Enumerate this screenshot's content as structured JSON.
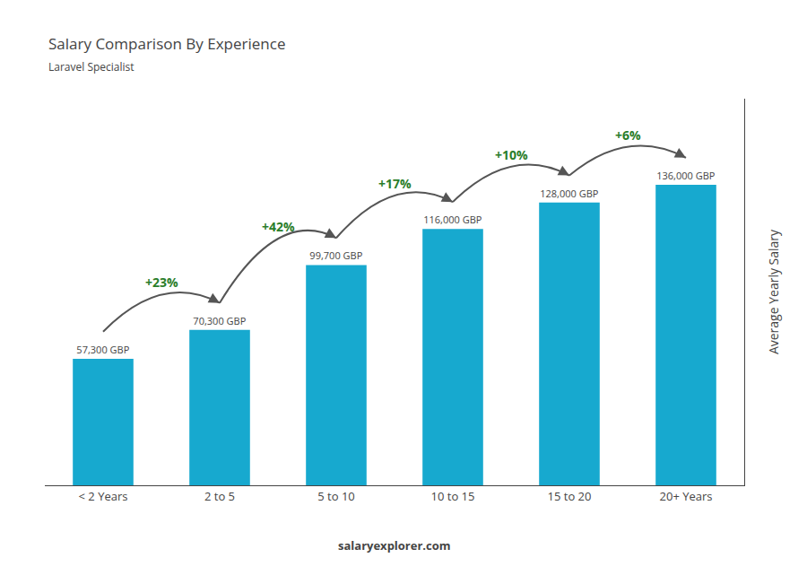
{
  "chart_data": {
    "type": "bar",
    "title": "Salary Comparison By Experience",
    "subtitle": "Laravel Specialist",
    "ylabel": "Average Yearly Salary",
    "categories": [
      "< 2 Years",
      "2 to 5",
      "5 to 10",
      "10 to 15",
      "15 to 20",
      "20+ Years"
    ],
    "values": [
      57300,
      70300,
      99700,
      116000,
      128000,
      136000
    ],
    "value_labels": [
      "57,300 GBP",
      "70,300 GBP",
      "99,700 GBP",
      "116,000 GBP",
      "128,000 GBP",
      "136,000 GBP"
    ],
    "data_labels": true,
    "color": "#17a9cf",
    "ylim": [
      0,
      175000
    ],
    "yticks": [],
    "tick_labels": "x",
    "grid": false,
    "annotations": [
      "+23%",
      "+42%",
      "+17%",
      "+10%",
      "+6%"
    ],
    "footer": "salaryexplorer.com"
  }
}
